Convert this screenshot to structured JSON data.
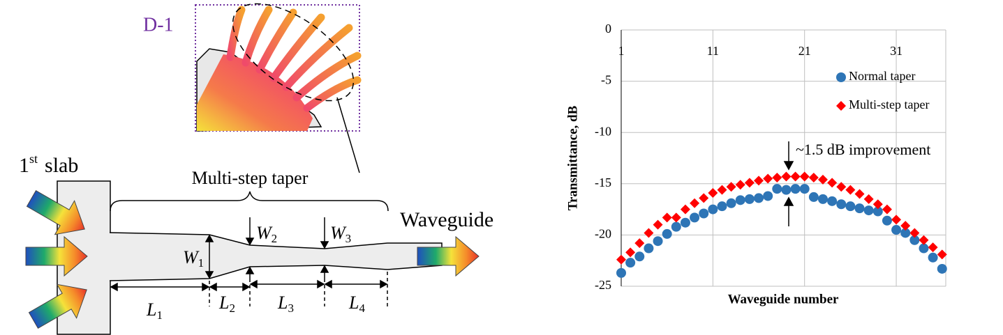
{
  "diagram": {
    "inset_label": "D-1",
    "slab_label": {
      "base": "1",
      "sup": "st",
      "rest": "slab"
    },
    "taper_label": "Multi-step taper",
    "waveguide_label": "Waveguide",
    "widths": [
      {
        "symbol": "W",
        "sub": "1"
      },
      {
        "symbol": "W",
        "sub": "2"
      },
      {
        "symbol": "W",
        "sub": "3"
      }
    ],
    "lengths": [
      {
        "symbol": "L",
        "sub": "1"
      },
      {
        "symbol": "L",
        "sub": "2"
      },
      {
        "symbol": "L",
        "sub": "3"
      },
      {
        "symbol": "L",
        "sub": "4"
      }
    ]
  },
  "chart_data": {
    "type": "scatter",
    "x_label": "Waveguide number",
    "y_label": "Transmittance, dB",
    "annotation": "~1.5 dB improvement",
    "x": [
      1,
      2,
      3,
      4,
      5,
      6,
      7,
      8,
      9,
      10,
      11,
      12,
      13,
      14,
      15,
      16,
      17,
      18,
      19,
      20,
      21,
      22,
      23,
      24,
      25,
      26,
      27,
      28,
      29,
      30,
      31,
      32,
      33,
      34,
      35,
      36
    ],
    "xlim": [
      1,
      36.4
    ],
    "xticks": [
      1,
      11,
      21,
      31
    ],
    "ylim": [
      -25,
      0
    ],
    "yticks": [
      0,
      -5,
      -10,
      -15,
      -20,
      -25
    ],
    "grid": true,
    "legend": "upper right",
    "series": [
      {
        "name": "Normal taper",
        "color": "#2e75b6",
        "marker": "circle",
        "values": [
          -23.7,
          -22.7,
          -22.1,
          -21.3,
          -20.6,
          -19.9,
          -19.2,
          -18.8,
          -18.3,
          -17.9,
          -17.5,
          -17.2,
          -16.9,
          -16.6,
          -16.5,
          -16.4,
          -16.2,
          -15.5,
          -15.6,
          -15.5,
          -15.5,
          -16.3,
          -16.5,
          -16.7,
          -17.0,
          -17.2,
          -17.4,
          -17.6,
          -17.7,
          -18.6,
          -19.5,
          -19.8,
          -20.5,
          -21.3,
          -22.2,
          -23.3
        ]
      },
      {
        "name": "Multi-step taper",
        "color": "#ff0000",
        "marker": "diamond",
        "values": [
          -22.4,
          -21.7,
          -20.8,
          -19.8,
          -19.0,
          -18.3,
          -18.3,
          -17.5,
          -16.9,
          -16.4,
          -15.9,
          -15.6,
          -15.3,
          -15.1,
          -14.9,
          -14.7,
          -14.5,
          -14.4,
          -14.3,
          -14.3,
          -14.3,
          -14.4,
          -14.6,
          -14.9,
          -15.3,
          -15.6,
          -16.0,
          -16.5,
          -17.0,
          -17.5,
          -18.5,
          -19.1,
          -19.8,
          -20.5,
          -21.2,
          -21.9
        ]
      }
    ]
  }
}
